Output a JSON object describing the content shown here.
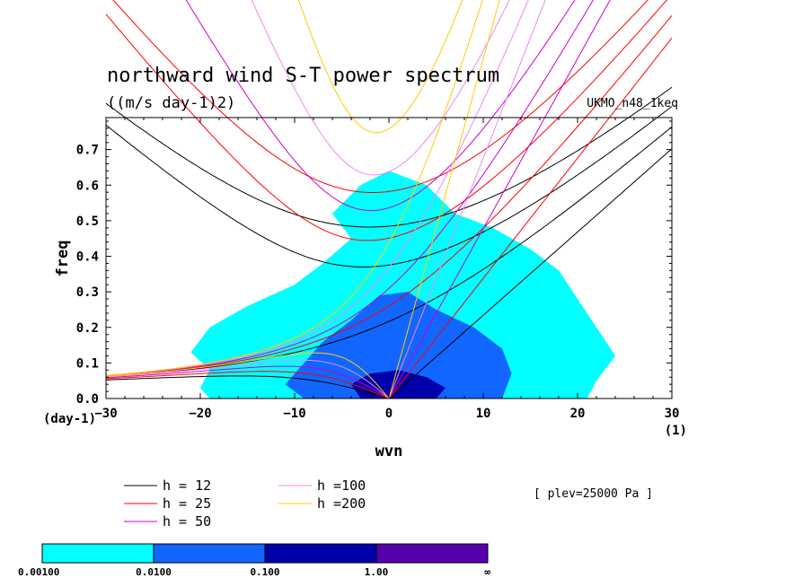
{
  "chart_data": {
    "type": "heatmap",
    "title": "northward wind S-T power spectrum",
    "subtitle": "((m/s day-1)2)",
    "source": "UKMO_n48_1keq",
    "annotation": "[ plev=25000 Pa ]",
    "xlabel": "wvn",
    "ylabel": "freq",
    "x_unit": "(1)",
    "y_unit": "(day-1)",
    "xlim": [
      -30,
      30
    ],
    "ylim": [
      0,
      0.79
    ],
    "xticks": [
      -30,
      -20,
      -10,
      0,
      10,
      20,
      30
    ],
    "xtick_labels": [
      "−30",
      "−20",
      "−10",
      "0",
      "10",
      "20",
      "30"
    ],
    "yticks": [
      0.0,
      0.1,
      0.2,
      0.3,
      0.4,
      0.5,
      0.6,
      0.7
    ],
    "ytick_labels": [
      "0.0",
      "0.1",
      "0.2",
      "0.3",
      "0.4",
      "0.5",
      "0.6",
      "0.7"
    ],
    "shading_regions": [
      {
        "level": 1,
        "points": [
          [
            -19,
            0
          ],
          [
            -20,
            0.03
          ],
          [
            -19,
            0.08
          ],
          [
            -21,
            0.13
          ],
          [
            -19,
            0.2
          ],
          [
            -15,
            0.26
          ],
          [
            -10,
            0.32
          ],
          [
            -7,
            0.38
          ],
          [
            -4,
            0.45
          ],
          [
            -6,
            0.52
          ],
          [
            -3,
            0.6
          ],
          [
            0,
            0.64
          ],
          [
            4,
            0.6
          ],
          [
            7,
            0.52
          ],
          [
            11,
            0.48
          ],
          [
            15,
            0.42
          ],
          [
            18,
            0.36
          ],
          [
            20,
            0.28
          ],
          [
            22,
            0.2
          ],
          [
            24,
            0.12
          ],
          [
            22,
            0.05
          ],
          [
            21,
            0
          ]
        ]
      },
      {
        "level": 2,
        "points": [
          [
            -9,
            0
          ],
          [
            -11,
            0.04
          ],
          [
            -9,
            0.1
          ],
          [
            -7,
            0.16
          ],
          [
            -4,
            0.22
          ],
          [
            -1,
            0.29
          ],
          [
            2,
            0.3
          ],
          [
            5,
            0.25
          ],
          [
            9,
            0.2
          ],
          [
            12,
            0.14
          ],
          [
            13,
            0.07
          ],
          [
            12,
            0
          ]
        ]
      },
      {
        "level": 3,
        "points": [
          [
            -3,
            0
          ],
          [
            -4,
            0.04
          ],
          [
            -2,
            0.07
          ],
          [
            1,
            0.08
          ],
          [
            4,
            0.06
          ],
          [
            6,
            0.03
          ],
          [
            5,
            0
          ]
        ]
      }
    ],
    "series": [
      {
        "name": "h = 12",
        "h": 12,
        "color": "#000000",
        "curves": [
          {
            "eq": "EIG",
            "n": 1
          },
          {
            "eq": "EIG",
            "n": 2
          },
          {
            "eq": "MRG"
          },
          {
            "eq": "KW"
          },
          {
            "eq": "ER",
            "n": 1
          }
        ]
      },
      {
        "name": "h = 25",
        "h": 25,
        "color": "#ff0000",
        "curves": [
          {
            "eq": "EIG",
            "n": 1
          },
          {
            "eq": "EIG",
            "n": 2
          },
          {
            "eq": "MRG"
          },
          {
            "eq": "KW"
          },
          {
            "eq": "ER",
            "n": 1
          }
        ]
      },
      {
        "name": "h = 50",
        "h": 50,
        "color": "#cc00cc",
        "curves": [
          {
            "eq": "EIG",
            "n": 1
          },
          {
            "eq": "MRG"
          },
          {
            "eq": "KW"
          },
          {
            "eq": "ER",
            "n": 1
          }
        ]
      },
      {
        "name": "h =100",
        "h": 100,
        "color": "#ee88ee",
        "curves": [
          {
            "eq": "EIG",
            "n": 1
          },
          {
            "eq": "MRG"
          },
          {
            "eq": "KW"
          },
          {
            "eq": "ER",
            "n": 1
          }
        ]
      },
      {
        "name": "h =200",
        "h": 200,
        "color": "#ffcc00",
        "curves": [
          {
            "eq": "EIG",
            "n": 1
          },
          {
            "eq": "MRG"
          },
          {
            "eq": "KW"
          },
          {
            "eq": "ER",
            "n": 1
          }
        ]
      }
    ],
    "colorbar": {
      "colors": [
        "#00ffff",
        "#1166ff",
        "#0000aa",
        "#5500aa"
      ],
      "labels": [
        "0.00100",
        "0.0100",
        "0.100",
        "1.00",
        "∞"
      ]
    }
  }
}
